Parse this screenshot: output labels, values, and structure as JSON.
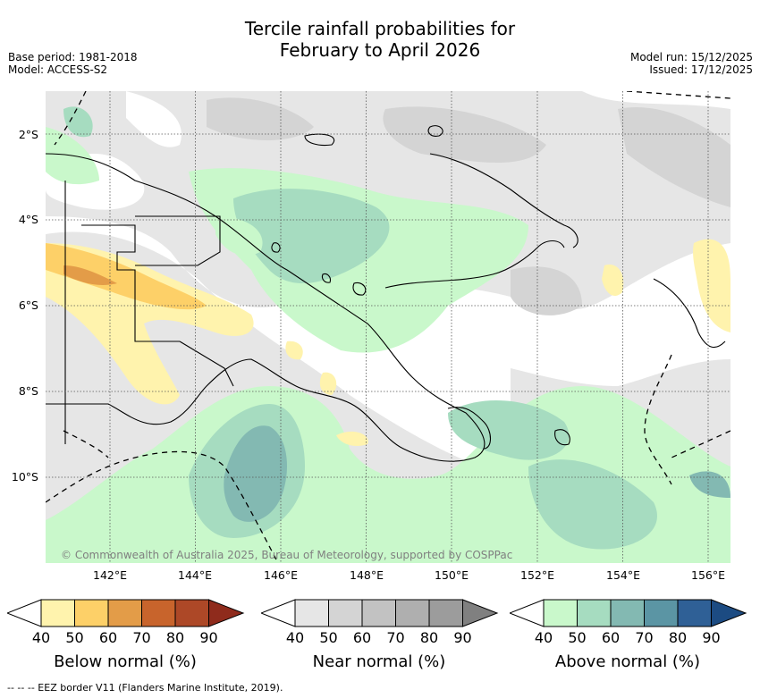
{
  "title_line1": "Tercile rainfall probabilities for",
  "title_line2": "February to April 2026",
  "base_period": "Base period: 1981-2018",
  "model": "Model: ACCESS-S2",
  "model_run": "Model run: 15/12/2025",
  "issued": "Issued: 17/12/2025",
  "latitude_labels": [
    "2°S",
    "4°S",
    "6°S",
    "8°S",
    "10°S"
  ],
  "longitude_labels": [
    "142°E",
    "144°E",
    "146°E",
    "148°E",
    "150°E",
    "152°E",
    "154°E",
    "156°E"
  ],
  "copyright": "© Commonwealth of Australia 2025, Bureau of Meteorology, supported by COSPPac",
  "colorbars": [
    {
      "title": "Below normal (%)",
      "ticks": [
        "40",
        "50",
        "60",
        "70",
        "80",
        "90"
      ],
      "colors": [
        "#fff3ad",
        "#fdd068",
        "#e39c48",
        "#c8642c",
        "#ad4827",
        "#8f2b1c"
      ]
    },
    {
      "title": "Near normal (%)",
      "ticks": [
        "40",
        "50",
        "60",
        "70",
        "80",
        "90"
      ],
      "colors": [
        "#e6e6e6",
        "#d4d4d4",
        "#c2c2c2",
        "#afafaf",
        "#9c9c9c",
        "#808080"
      ]
    },
    {
      "title": "Above normal (%)",
      "ticks": [
        "40",
        "50",
        "60",
        "70",
        "80",
        "90"
      ],
      "colors": [
        "#c9f8cb",
        "#a6dcc0",
        "#83b9b2",
        "#5b95a4",
        "#2f6096",
        "#1c4b82"
      ]
    }
  ],
  "footer": "-- -- -- EEZ border V11 (Flanders Marine Institute, 2019)."
}
